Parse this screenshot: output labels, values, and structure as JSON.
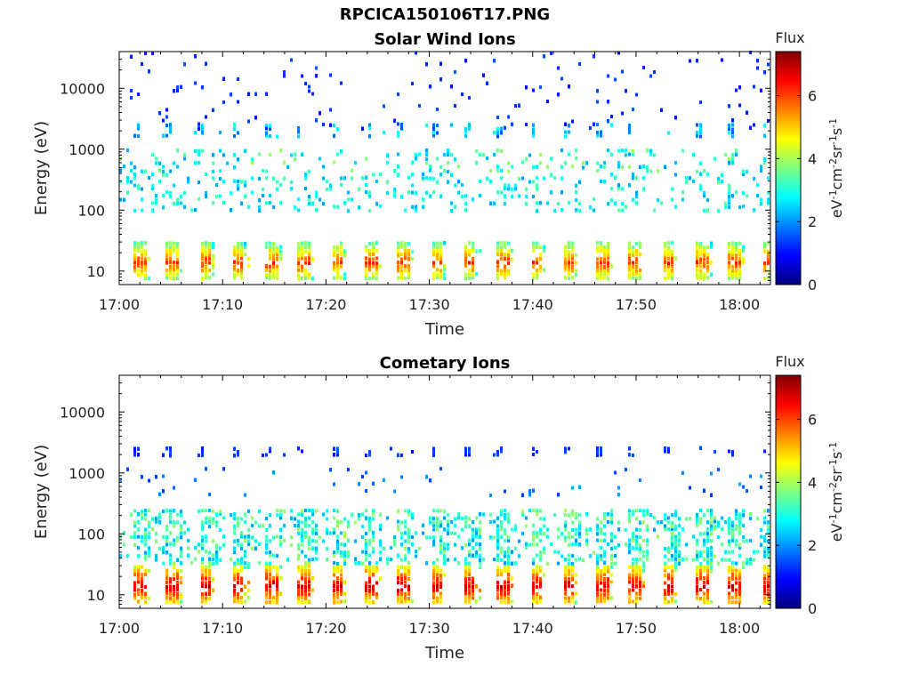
{
  "figure": {
    "title": "RPCICA150106T17.PNG"
  },
  "colors": {
    "background": "#ffffff",
    "axis": "#000000",
    "colormap": "jet",
    "colormap_stops": [
      "#00007f",
      "#0000ff",
      "#007fff",
      "#00ffff",
      "#7fff7f",
      "#ffff00",
      "#ff7f00",
      "#ff0000",
      "#7f0000"
    ]
  },
  "chart_data": [
    {
      "type": "heatmap",
      "title": "Solar Wind Ions",
      "xlabel": "Time",
      "ylabel": "Energy (eV)",
      "y_scale": "log",
      "ylim": [
        6,
        40000
      ],
      "xlim": [
        "17:00",
        "18:03"
      ],
      "x_ticks": [
        "17:00",
        "17:10",
        "17:20",
        "17:30",
        "17:40",
        "17:50",
        "18:00"
      ],
      "y_ticks": [
        "10",
        "100",
        "1000",
        "10000"
      ],
      "colorbar": {
        "title": "Flux",
        "label": "eV-1cm-2sr-1s-1",
        "range": [
          0,
          7.4
        ],
        "ticks": [
          "0",
          "2",
          "4",
          "6"
        ]
      },
      "bands": [
        {
          "energy_range": [
            7,
            30
          ],
          "flux_range": [
            3,
            6.5
          ],
          "pattern": "sweep bursts about every 3.2 min",
          "coverage": "dense"
        },
        {
          "energy_range": [
            90,
            400
          ],
          "flux_range": [
            2,
            3.5
          ],
          "pattern": "scattered",
          "coverage": "sparse"
        },
        {
          "energy_range": [
            1500,
            2600
          ],
          "flux_range": [
            1.5,
            3
          ],
          "pattern": "recurring clumps",
          "coverage": "sparse"
        },
        {
          "energy_range": [
            400,
            1000
          ],
          "flux_range": [
            2,
            4
          ],
          "pattern": "scattered",
          "coverage": "sparse"
        },
        {
          "energy_range": [
            2000,
            40000
          ],
          "flux_range": [
            1,
            1.6
          ],
          "pattern": "isolated points",
          "coverage": "very sparse"
        }
      ]
    },
    {
      "type": "heatmap",
      "title": "Cometary Ions",
      "xlabel": "Time",
      "ylabel": "Energy (eV)",
      "y_scale": "log",
      "ylim": [
        6,
        40000
      ],
      "xlim": [
        "17:00",
        "18:03"
      ],
      "x_ticks": [
        "17:00",
        "17:10",
        "17:20",
        "17:30",
        "17:40",
        "17:50",
        "18:00"
      ],
      "y_ticks": [
        "10",
        "100",
        "1000",
        "10000"
      ],
      "colorbar": {
        "title": "Flux",
        "label": "eV-1cm-2sr-1s-1",
        "range": [
          0,
          7.4
        ],
        "ticks": [
          "0",
          "2",
          "4",
          "6"
        ]
      },
      "bands": [
        {
          "energy_range": [
            7,
            30
          ],
          "flux_range": [
            4,
            7.3
          ],
          "pattern": "sweep bursts about every 3.2 min",
          "coverage": "dense"
        },
        {
          "energy_range": [
            30,
            250
          ],
          "flux_range": [
            2,
            4
          ],
          "pattern": "scattered plumes",
          "coverage": "moderate"
        },
        {
          "energy_range": [
            1800,
            2600
          ],
          "flux_range": [
            1,
            1.6
          ],
          "pattern": "recurring dashes",
          "coverage": "sparse"
        },
        {
          "energy_range": [
            400,
            1200
          ],
          "flux_range": [
            1.3,
            2.2
          ],
          "pattern": "isolated points",
          "coverage": "very sparse"
        }
      ]
    }
  ]
}
